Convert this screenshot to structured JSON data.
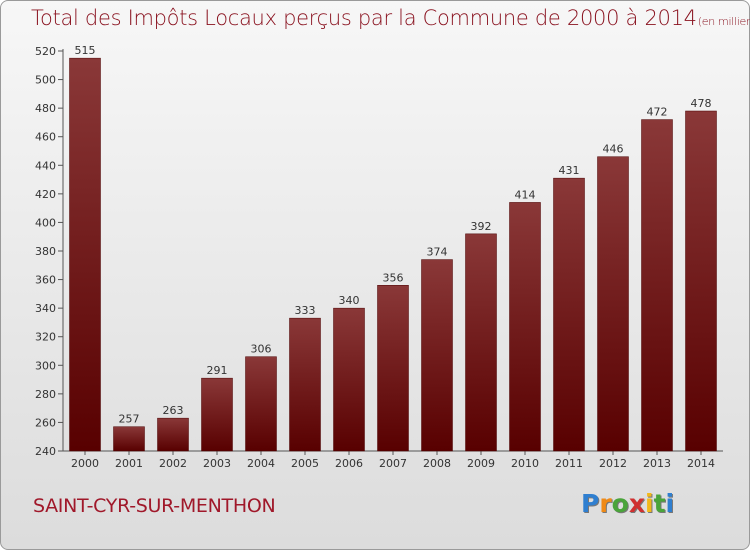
{
  "title": "Total des Impôts Locaux perçus par la Commune de 2000 à 2014",
  "title_unit": "(en milliers d'€)",
  "commune": "SAINT-CYR-SUR-MENTHON",
  "logo": {
    "letters": [
      "P",
      "r",
      "o",
      "x",
      "i",
      "t",
      "i"
    ],
    "colors": [
      "#2f7fd0",
      "#f08a16",
      "#4aa43a",
      "#d03030",
      "#f2b81a",
      "#4aa43a",
      "#2f7fd0"
    ]
  },
  "colors": {
    "bar_top": "#8a3838",
    "bar_bottom": "#580000",
    "title": "#8a1320"
  },
  "chart_data": {
    "type": "bar",
    "categories": [
      "2000",
      "2001",
      "2002",
      "2003",
      "2004",
      "2005",
      "2006",
      "2007",
      "2008",
      "2009",
      "2010",
      "2011",
      "2012",
      "2013",
      "2014"
    ],
    "values": [
      515,
      257,
      263,
      291,
      306,
      333,
      340,
      356,
      374,
      392,
      414,
      431,
      446,
      472,
      478
    ],
    "ylim": [
      240,
      520
    ],
    "yticks": [
      240,
      260,
      280,
      300,
      320,
      340,
      360,
      380,
      400,
      420,
      440,
      460,
      480,
      500,
      520
    ],
    "grid": false,
    "xlabel": "",
    "ylabel": ""
  }
}
